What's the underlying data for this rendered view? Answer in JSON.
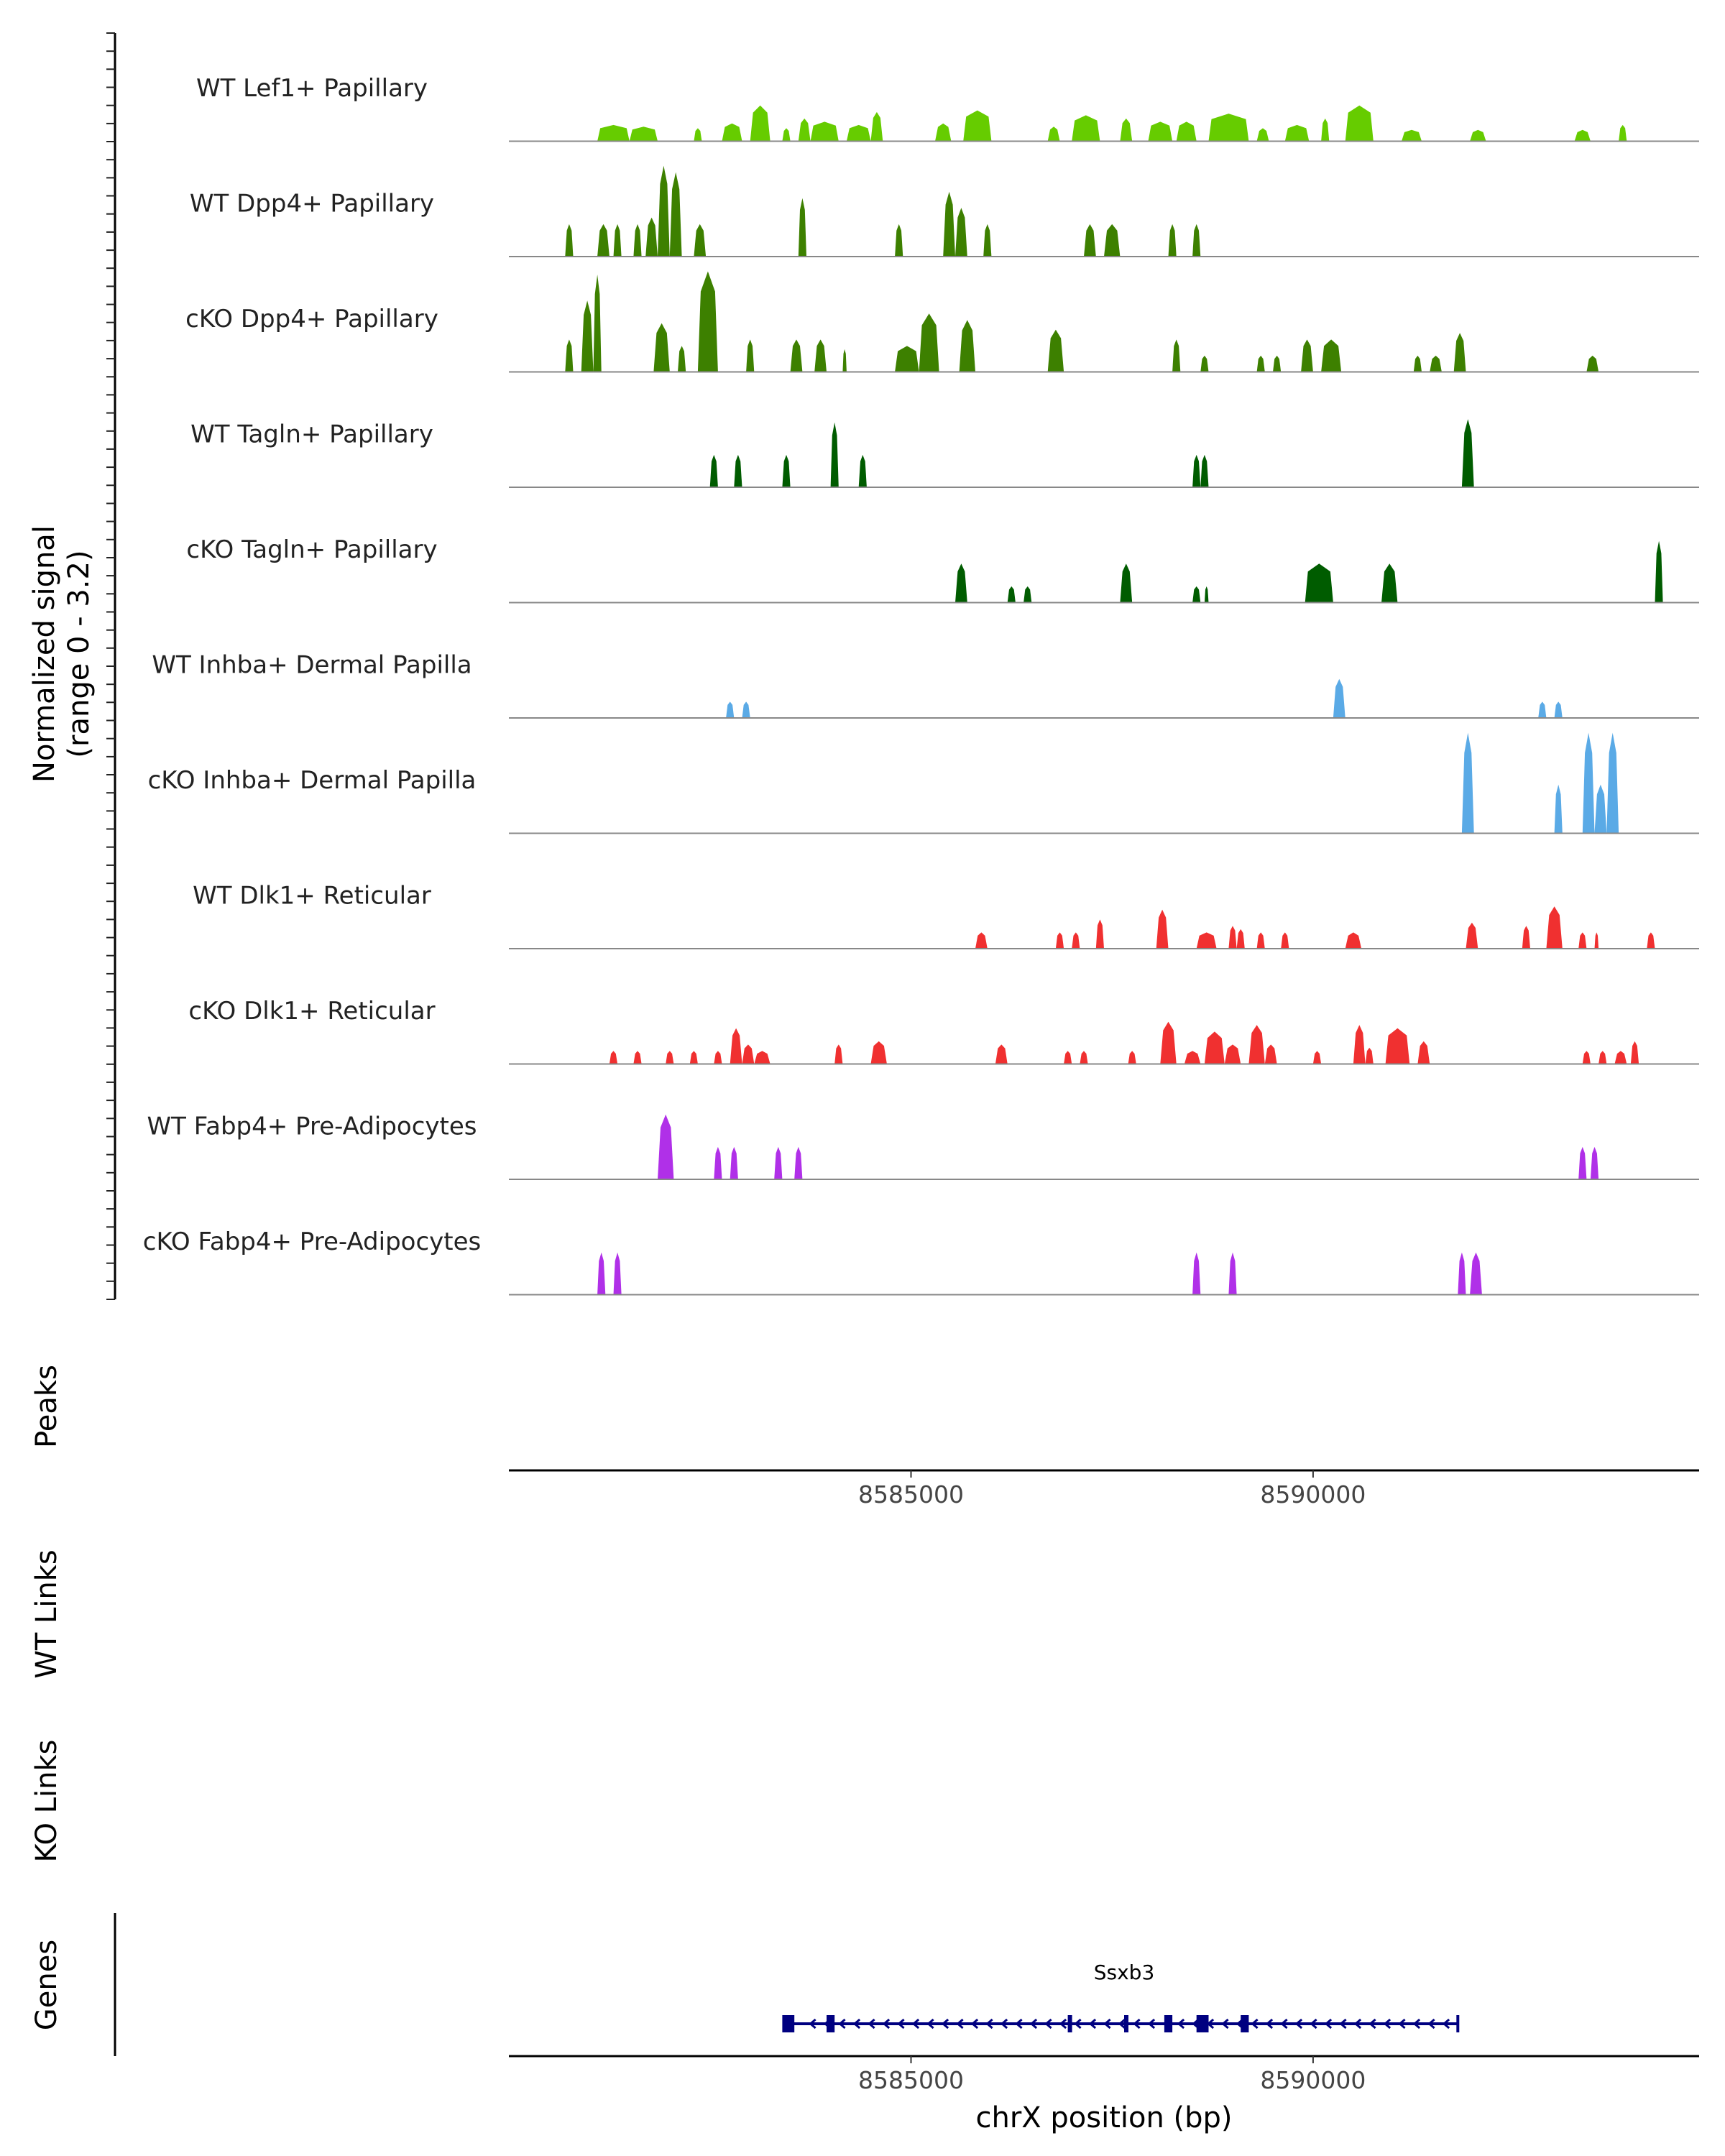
{
  "chart_data": {
    "type": "area",
    "title": "",
    "ylabel_main": "Normalized signal",
    "ylabel_range": "(range 0 - 3.2)",
    "ylim": [
      0,
      3.2
    ],
    "xlim": [
      8580000,
      8594800
    ],
    "xlabel": "chrX position (bp)",
    "x_ticks": [
      8585000,
      8590000
    ],
    "x_tick_labels": [
      "8585000",
      "8590000"
    ],
    "panel_labels": {
      "peaks": "Peaks",
      "wt_links": "WT Links",
      "ko_links": "KO Links",
      "genes": "Genes"
    },
    "series": [
      {
        "name": "WT Lef1+ Papillary",
        "color": "#66cc00",
        "peaks": [
          [
            8581100,
            8581500,
            0.5
          ],
          [
            8581500,
            8581850,
            0.45
          ],
          [
            8582300,
            8582400,
            0.4
          ],
          [
            8582650,
            8582900,
            0.55
          ],
          [
            8583000,
            8583250,
            1.1
          ],
          [
            8583400,
            8583500,
            0.4
          ],
          [
            8583600,
            8583750,
            0.7
          ],
          [
            8583750,
            8584100,
            0.6
          ],
          [
            8584200,
            8584500,
            0.5
          ],
          [
            8584500,
            8584650,
            0.9
          ],
          [
            8585300,
            8585500,
            0.55
          ],
          [
            8585650,
            8586000,
            0.95
          ],
          [
            8586700,
            8586850,
            0.45
          ],
          [
            8587000,
            8587350,
            0.8
          ],
          [
            8587600,
            8587750,
            0.7
          ],
          [
            8587950,
            8588250,
            0.6
          ],
          [
            8588300,
            8588550,
            0.6
          ],
          [
            8588700,
            8589200,
            0.85
          ],
          [
            8589300,
            8589450,
            0.4
          ],
          [
            8589650,
            8589950,
            0.5
          ],
          [
            8590100,
            8590200,
            0.7
          ],
          [
            8590400,
            8590750,
            1.1
          ],
          [
            8591100,
            8591350,
            0.35
          ],
          [
            8591950,
            8592150,
            0.35
          ],
          [
            8593250,
            8593450,
            0.35
          ],
          [
            8593800,
            8593900,
            0.5
          ]
        ]
      },
      {
        "name": "WT Dpp4+ Papillary",
        "color": "#3d8000",
        "peaks": [
          [
            8580700,
            8580800,
            1.0
          ],
          [
            8581100,
            8581250,
            1.0
          ],
          [
            8581300,
            8581400,
            1.0
          ],
          [
            8581550,
            8581650,
            1.0
          ],
          [
            8581700,
            8581850,
            1.2
          ],
          [
            8581850,
            8582000,
            2.8
          ],
          [
            8582000,
            8582150,
            2.6
          ],
          [
            8582300,
            8582450,
            1.0
          ],
          [
            8583600,
            8583700,
            1.8
          ],
          [
            8584800,
            8584900,
            1.0
          ],
          [
            8585400,
            8585550,
            2.0
          ],
          [
            8585550,
            8585700,
            1.5
          ],
          [
            8585900,
            8586000,
            1.0
          ],
          [
            8587150,
            8587300,
            1.0
          ],
          [
            8587400,
            8587600,
            1.0
          ],
          [
            8588200,
            8588300,
            1.0
          ],
          [
            8588500,
            8588600,
            1.0
          ]
        ]
      },
      {
        "name": "cKO Dpp4+ Papillary",
        "color": "#3d8000",
        "peaks": [
          [
            8580700,
            8580800,
            1.0
          ],
          [
            8580900,
            8581050,
            2.2
          ],
          [
            8581050,
            8581150,
            3.0
          ],
          [
            8581800,
            8582000,
            1.5
          ],
          [
            8582100,
            8582200,
            0.8
          ],
          [
            8582350,
            8582600,
            3.1
          ],
          [
            8582950,
            8583050,
            1.0
          ],
          [
            8583500,
            8583650,
            1.0
          ],
          [
            8583800,
            8583950,
            1.0
          ],
          [
            8584150,
            8584200,
            0.7
          ],
          [
            8584800,
            8585100,
            0.8
          ],
          [
            8585100,
            8585350,
            1.8
          ],
          [
            8585600,
            8585800,
            1.6
          ],
          [
            8586700,
            8586900,
            1.3
          ],
          [
            8588250,
            8588350,
            1.0
          ],
          [
            8588600,
            8588700,
            0.5
          ],
          [
            8589300,
            8589400,
            0.5
          ],
          [
            8589500,
            8589600,
            0.5
          ],
          [
            8589850,
            8590000,
            1.0
          ],
          [
            8590100,
            8590350,
            1.0
          ],
          [
            8591250,
            8591350,
            0.5
          ],
          [
            8591450,
            8591600,
            0.5
          ],
          [
            8591750,
            8591900,
            1.2
          ],
          [
            8593400,
            8593550,
            0.5
          ]
        ]
      },
      {
        "name": "WT Tagln+ Papillary",
        "color": "#005c00",
        "peaks": [
          [
            8582500,
            8582600,
            1.0
          ],
          [
            8582800,
            8582900,
            1.0
          ],
          [
            8583400,
            8583500,
            1.0
          ],
          [
            8584000,
            8584100,
            2.0
          ],
          [
            8584350,
            8584450,
            1.0
          ],
          [
            8588500,
            8588600,
            1.0
          ],
          [
            8588600,
            8588700,
            1.0
          ],
          [
            8591850,
            8592000,
            2.1
          ]
        ]
      },
      {
        "name": "cKO Tagln+ Papillary",
        "color": "#005c00",
        "peaks": [
          [
            8585550,
            8585700,
            1.2
          ],
          [
            8586200,
            8586300,
            0.5
          ],
          [
            8586400,
            8586500,
            0.5
          ],
          [
            8587600,
            8587750,
            1.2
          ],
          [
            8588500,
            8588600,
            0.5
          ],
          [
            8588650,
            8588700,
            0.5
          ],
          [
            8589900,
            8590250,
            1.2
          ],
          [
            8590850,
            8591050,
            1.2
          ],
          [
            8594250,
            8594350,
            1.9
          ]
        ]
      },
      {
        "name": "WT Inhba+ Dermal Papilla",
        "color": "#5aaae6",
        "peaks": [
          [
            8582700,
            8582800,
            0.5
          ],
          [
            8582900,
            8583000,
            0.5
          ],
          [
            8590250,
            8590400,
            1.2
          ],
          [
            8592800,
            8592900,
            0.5
          ],
          [
            8593000,
            8593100,
            0.5
          ]
        ]
      },
      {
        "name": "cKO Inhba+ Dermal Papilla",
        "color": "#5aaae6",
        "peaks": [
          [
            8591850,
            8592000,
            3.1
          ],
          [
            8593000,
            8593100,
            1.5
          ],
          [
            8593350,
            8593500,
            3.1
          ],
          [
            8593500,
            8593650,
            1.5
          ],
          [
            8593650,
            8593800,
            3.1
          ]
        ]
      },
      {
        "name": "WT Dlk1+ Reticular",
        "color": "#f03030",
        "peaks": [
          [
            8585800,
            8585950,
            0.5
          ],
          [
            8586800,
            8586900,
            0.5
          ],
          [
            8587000,
            8587100,
            0.5
          ],
          [
            8587300,
            8587400,
            0.9
          ],
          [
            8588050,
            8588200,
            1.2
          ],
          [
            8588550,
            8588800,
            0.5
          ],
          [
            8588950,
            8589050,
            0.7
          ],
          [
            8589050,
            8589150,
            0.6
          ],
          [
            8589300,
            8589400,
            0.5
          ],
          [
            8589600,
            8589700,
            0.5
          ],
          [
            8590400,
            8590600,
            0.5
          ],
          [
            8591900,
            8592050,
            0.8
          ],
          [
            8592600,
            8592700,
            0.7
          ],
          [
            8592900,
            8593100,
            1.3
          ],
          [
            8593300,
            8593400,
            0.5
          ],
          [
            8593500,
            8593550,
            0.5
          ],
          [
            8594150,
            8594250,
            0.5
          ]
        ]
      },
      {
        "name": "cKO Dlk1+ Reticular",
        "color": "#f03030",
        "peaks": [
          [
            8581250,
            8581350,
            0.4
          ],
          [
            8581550,
            8581650,
            0.4
          ],
          [
            8581950,
            8582050,
            0.4
          ],
          [
            8582250,
            8582350,
            0.4
          ],
          [
            8582550,
            8582650,
            0.4
          ],
          [
            8582750,
            8582900,
            1.1
          ],
          [
            8582900,
            8583050,
            0.6
          ],
          [
            8583050,
            8583250,
            0.4
          ],
          [
            8584050,
            8584150,
            0.6
          ],
          [
            8584500,
            8584700,
            0.7
          ],
          [
            8586050,
            8586200,
            0.6
          ],
          [
            8586900,
            8587000,
            0.4
          ],
          [
            8587100,
            8587200,
            0.4
          ],
          [
            8587700,
            8587800,
            0.4
          ],
          [
            8588100,
            8588300,
            1.3
          ],
          [
            8588400,
            8588600,
            0.4
          ],
          [
            8588650,
            8588900,
            1.0
          ],
          [
            8588900,
            8589100,
            0.6
          ],
          [
            8589200,
            8589400,
            1.2
          ],
          [
            8589400,
            8589550,
            0.6
          ],
          [
            8590000,
            8590100,
            0.4
          ],
          [
            8590500,
            8590650,
            1.2
          ],
          [
            8590650,
            8590750,
            0.5
          ],
          [
            8590900,
            8591200,
            1.1
          ],
          [
            8591300,
            8591450,
            0.7
          ],
          [
            8593350,
            8593450,
            0.4
          ],
          [
            8593550,
            8593650,
            0.4
          ],
          [
            8593750,
            8593900,
            0.4
          ],
          [
            8593950,
            8594050,
            0.7
          ]
        ]
      },
      {
        "name": "WT Fabp4+ Pre-Adipocytes",
        "color": "#b030e8",
        "peaks": [
          [
            8581850,
            8582050,
            2.0
          ],
          [
            8582550,
            8582650,
            1.0
          ],
          [
            8582750,
            8582850,
            1.0
          ],
          [
            8583300,
            8583400,
            1.0
          ],
          [
            8583550,
            8583650,
            1.0
          ],
          [
            8593300,
            8593400,
            1.0
          ],
          [
            8593450,
            8593550,
            1.0
          ]
        ]
      },
      {
        "name": "cKO Fabp4+ Pre-Adipocytes",
        "color": "#b030e8",
        "peaks": [
          [
            8581100,
            8581200,
            1.3
          ],
          [
            8581300,
            8581400,
            1.3
          ],
          [
            8588500,
            8588600,
            1.3
          ],
          [
            8588950,
            8589050,
            1.3
          ],
          [
            8591800,
            8591900,
            1.3
          ],
          [
            8591950,
            8592100,
            1.3
          ]
        ]
      }
    ],
    "gene": {
      "name": "Ssxb3",
      "start": 8583500,
      "end": 8591800,
      "strand": "-",
      "color": "#000080",
      "exons": [
        [
          8583400,
          8583550
        ],
        [
          8583950,
          8584050
        ],
        [
          8586950,
          8587000
        ],
        [
          8587650,
          8587700
        ],
        [
          8588150,
          8588250
        ],
        [
          8588550,
          8588700
        ],
        [
          8589100,
          8589200
        ]
      ]
    }
  }
}
